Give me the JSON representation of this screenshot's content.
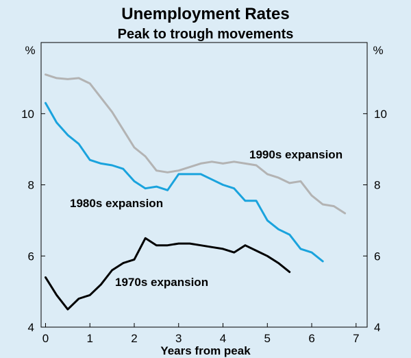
{
  "chart_data": {
    "type": "line",
    "title": "Unemployment Rates",
    "subtitle": "Peak to trough movements",
    "xlabel": "Years from peak",
    "ylabel_left": "%",
    "ylabel_right": "%",
    "xlim": [
      -0.1,
      7.25
    ],
    "ylim": [
      4,
      12
    ],
    "xticks": [
      0,
      1,
      2,
      3,
      4,
      5,
      6,
      7
    ],
    "yticks": [
      4,
      6,
      8,
      10
    ],
    "grid": false,
    "series": [
      {
        "name": "1990s expansion",
        "color": "#b3b3b3",
        "x": [
          0,
          0.25,
          0.5,
          0.75,
          1.0,
          1.25,
          1.5,
          1.75,
          2.0,
          2.25,
          2.5,
          2.75,
          3.0,
          3.25,
          3.5,
          3.75,
          4.0,
          4.25,
          4.5,
          4.75,
          5.0,
          5.25,
          5.5,
          5.75,
          6.0,
          6.25,
          6.5,
          6.75
        ],
        "values": [
          11.1,
          11.0,
          10.97,
          11.0,
          10.85,
          10.45,
          10.05,
          9.55,
          9.05,
          8.8,
          8.4,
          8.35,
          8.4,
          8.5,
          8.6,
          8.65,
          8.6,
          8.65,
          8.6,
          8.55,
          8.3,
          8.2,
          8.05,
          8.1,
          7.7,
          7.45,
          7.4,
          7.2
        ]
      },
      {
        "name": "1980s expansion",
        "color": "#1aa3dd",
        "x": [
          0,
          0.25,
          0.5,
          0.75,
          1.0,
          1.25,
          1.5,
          1.75,
          2.0,
          2.25,
          2.5,
          2.75,
          3.0,
          3.25,
          3.5,
          3.75,
          4.0,
          4.25,
          4.5,
          4.75,
          5.0,
          5.25,
          5.5,
          5.75,
          6.0,
          6.25
        ],
        "values": [
          10.3,
          9.75,
          9.4,
          9.15,
          8.7,
          8.6,
          8.55,
          8.45,
          8.1,
          7.9,
          7.95,
          7.85,
          8.3,
          8.3,
          8.3,
          8.15,
          8.0,
          7.9,
          7.55,
          7.55,
          7.0,
          6.75,
          6.6,
          6.2,
          6.1,
          5.85
        ]
      },
      {
        "name": "1970s expansion",
        "color": "#000000",
        "x": [
          0,
          0.25,
          0.5,
          0.75,
          1.0,
          1.25,
          1.5,
          1.75,
          2.0,
          2.25,
          2.5,
          2.75,
          3.0,
          3.25,
          3.5,
          3.75,
          4.0,
          4.25,
          4.5,
          4.75,
          5.0,
          5.25,
          5.5
        ],
        "values": [
          5.4,
          4.9,
          4.5,
          4.8,
          4.9,
          5.2,
          5.6,
          5.8,
          5.9,
          6.5,
          6.3,
          6.3,
          6.35,
          6.35,
          6.3,
          6.25,
          6.2,
          6.1,
          6.3,
          6.15,
          6.0,
          5.8,
          5.55
        ]
      }
    ]
  }
}
